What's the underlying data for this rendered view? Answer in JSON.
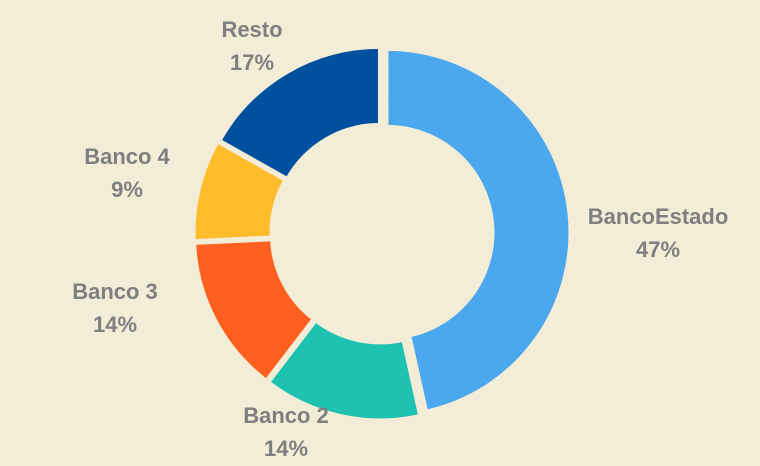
{
  "chart_data": {
    "type": "pie",
    "variant": "doughnut",
    "background": "#F3ECD7",
    "label_color": "#7F7F7F",
    "categories": [
      "BancoEstado",
      "Banco 2",
      "Banco 3",
      "Banco 4",
      "Resto"
    ],
    "values": [
      47,
      14,
      14,
      9,
      17
    ],
    "value_labels": [
      "47%",
      "14%",
      "14%",
      "9%",
      "17%"
    ],
    "colors": [
      "#4BA8EE",
      "#1FC2B1",
      "#FF5F1F",
      "#FEBB2A",
      "#0050A0"
    ]
  }
}
